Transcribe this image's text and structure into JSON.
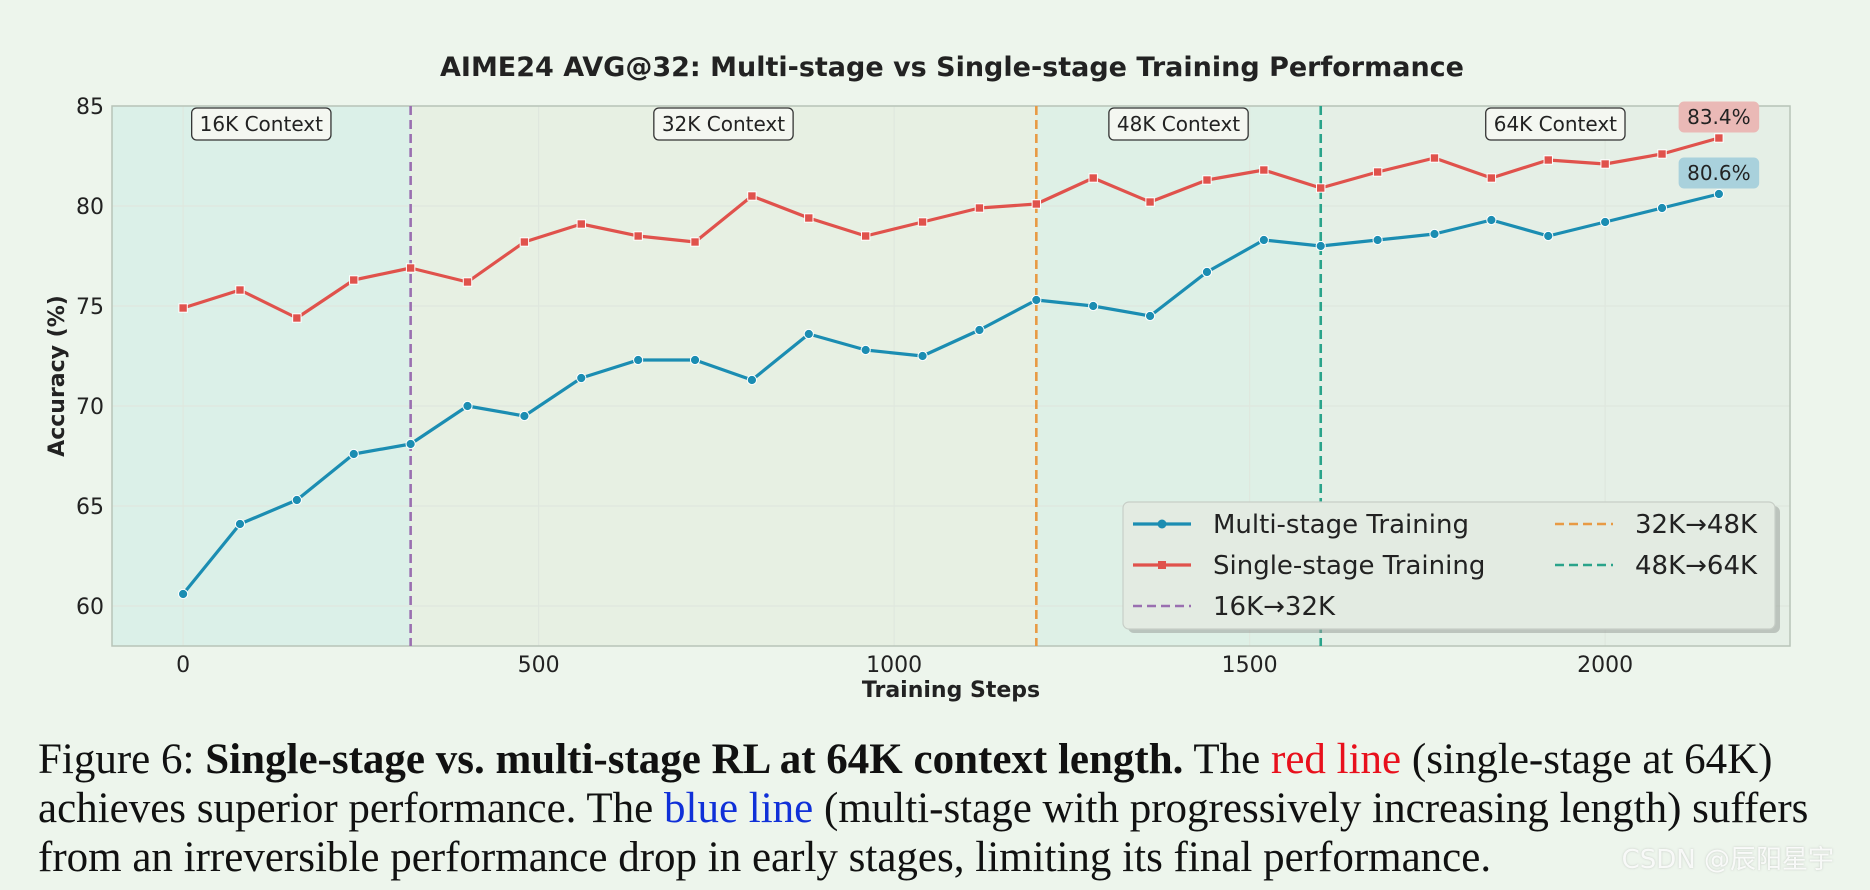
{
  "chart_data": {
    "type": "line",
    "title": "AIME24 AVG@32: Multi-stage vs Single-stage Training Performance",
    "xlabel": "Training Steps",
    "ylabel": "Accuracy (%)",
    "xlim": [
      -100,
      2260
    ],
    "ylim": [
      58,
      85
    ],
    "xticks": [
      0,
      500,
      1000,
      1500,
      2000
    ],
    "yticks": [
      60,
      65,
      70,
      75,
      80,
      85
    ],
    "grid": true,
    "legend_position": "lower-right",
    "x": [
      0,
      80,
      160,
      240,
      320,
      400,
      480,
      560,
      640,
      720,
      800,
      880,
      960,
      1040,
      1120,
      1200,
      1280,
      1360,
      1440,
      1520,
      1600,
      1680,
      1760,
      1840,
      1920,
      2000,
      2080,
      2160
    ],
    "series": [
      {
        "name": "Multi-stage Training",
        "color": "#1b8db2",
        "marker": "circle",
        "values": [
          60.6,
          64.1,
          65.3,
          67.6,
          68.1,
          70.0,
          69.5,
          71.4,
          72.3,
          72.3,
          71.3,
          73.6,
          72.8,
          72.5,
          73.8,
          75.3,
          75.0,
          74.5,
          76.7,
          78.3,
          78.0,
          78.3,
          78.6,
          79.3,
          78.5,
          79.2,
          79.9,
          80.6
        ],
        "end_label": "80.6%",
        "end_label_bg": "#a9d1dc"
      },
      {
        "name": "Single-stage Training",
        "color": "#e0524c",
        "marker": "square",
        "values": [
          74.9,
          75.8,
          74.4,
          76.3,
          76.9,
          76.2,
          78.2,
          79.1,
          78.5,
          78.2,
          80.5,
          79.4,
          78.5,
          79.2,
          79.9,
          80.1,
          81.4,
          80.2,
          81.3,
          81.8,
          80.9,
          81.7,
          82.4,
          81.4,
          82.3,
          82.1,
          82.6,
          83.4
        ],
        "end_label": "83.4%",
        "end_label_bg": "#eab9b6"
      }
    ],
    "vlines": [
      {
        "x": 320,
        "name": "16K→32K",
        "color": "#9a6fb0"
      },
      {
        "x": 1200,
        "name": "32K→48K",
        "color": "#e89a44"
      },
      {
        "x": 1600,
        "name": "48K→64K",
        "color": "#2aa38a"
      }
    ],
    "regions": [
      {
        "label": "16K Context",
        "start": -100,
        "end": 320,
        "color": "#d8efe8"
      },
      {
        "label": "32K Context",
        "start": 320,
        "end": 1200,
        "color": "#e6efe2"
      },
      {
        "label": "48K Context",
        "start": 1200,
        "end": 1600,
        "color": "#dbefe6"
      },
      {
        "label": "64K Context",
        "start": 1600,
        "end": 2260,
        "color": "#e3eee5"
      }
    ]
  },
  "caption": {
    "figure_label": "Figure 6:",
    "bold_title": "Single-stage vs. multi-stage RL at 64K context length.",
    "text_1": "The",
    "red_phrase": "red line",
    "text_2": "(single-stage at 64K) achieves superior performance. The",
    "blue_phrase": "blue line",
    "text_3": "(multi-stage with progressively increasing length) suffers from an irreversible performance drop in early stages, limiting its final performance."
  },
  "watermark": "CSDN @辰阳星宇"
}
